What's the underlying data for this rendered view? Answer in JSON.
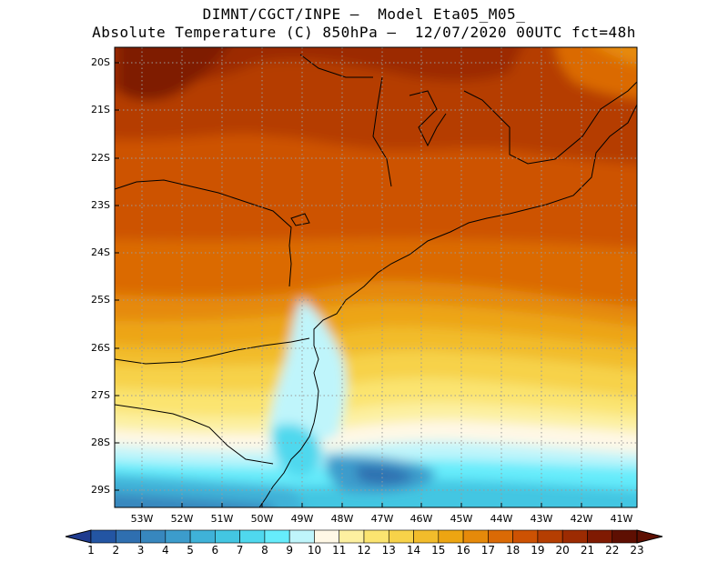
{
  "header": {
    "line1": "DIMNT/CGCT/INPE –  Model Eta05_M05_",
    "line2": "Absolute Temperature (C) 850hPa –  12/07/2020 00UTC fct=48h"
  },
  "map": {
    "lat_labels": [
      "20S",
      "21S",
      "22S",
      "23S",
      "24S",
      "25S",
      "26S",
      "27S",
      "28S",
      "29S"
    ],
    "lon_labels": [
      "53W",
      "52W",
      "51W",
      "50W",
      "49W",
      "48W",
      "47W",
      "46W",
      "45W",
      "44W",
      "43W",
      "42W",
      "41W"
    ]
  },
  "colorbar": {
    "labels": [
      "1",
      "2",
      "3",
      "4",
      "5",
      "6",
      "7",
      "8",
      "9",
      "10",
      "11",
      "12",
      "13",
      "14",
      "15",
      "16",
      "17",
      "18",
      "19",
      "20",
      "21",
      "22",
      "23"
    ],
    "colors": [
      "#1f3b8f",
      "#2355a3",
      "#2f6fb0",
      "#3787be",
      "#3c9ccc",
      "#3fb2d8",
      "#43c6e2",
      "#4fd8ee",
      "#66ecfb",
      "#bff5fb",
      "#fff8e6",
      "#fdf0a0",
      "#fbe470",
      "#f7d249",
      "#f2bc2b",
      "#eda512",
      "#e68a0a",
      "#db6a05",
      "#cd5203",
      "#b53e02",
      "#9c2b02",
      "#7f1a02",
      "#5e0f02"
    ]
  }
}
